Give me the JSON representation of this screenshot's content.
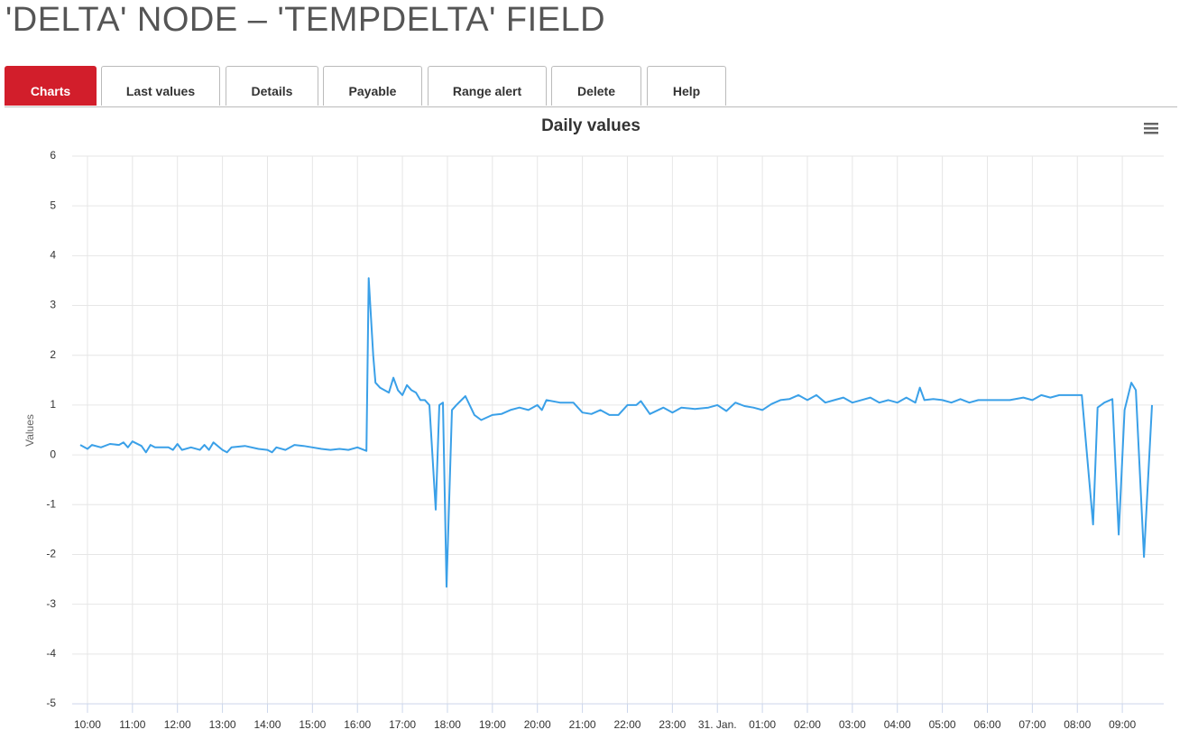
{
  "header": {
    "title": "'DELTA' NODE – 'TEMPDELTA' FIELD"
  },
  "tabs": [
    "Charts",
    "Last values",
    "Details",
    "Payable",
    "Range alert",
    "Delete",
    "Help"
  ],
  "chart_data": {
    "type": "line",
    "title": "Daily values",
    "y_label": "Values",
    "color": "#3aa0e8",
    "grid": true,
    "xlim": [
      9.66,
      33.92
    ],
    "ylim": [
      -5,
      6
    ],
    "yticks": [
      -5,
      -4,
      -3,
      -2,
      -1,
      0,
      1,
      2,
      3,
      4,
      5,
      6
    ],
    "xticks": [
      {
        "value": 10,
        "label": "10:00"
      },
      {
        "value": 11,
        "label": "11:00"
      },
      {
        "value": 12,
        "label": "12:00"
      },
      {
        "value": 13,
        "label": "13:00"
      },
      {
        "value": 14,
        "label": "14:00"
      },
      {
        "value": 15,
        "label": "15:00"
      },
      {
        "value": 16,
        "label": "16:00"
      },
      {
        "value": 17,
        "label": "17:00"
      },
      {
        "value": 18,
        "label": "18:00"
      },
      {
        "value": 19,
        "label": "19:00"
      },
      {
        "value": 20,
        "label": "20:00"
      },
      {
        "value": 21,
        "label": "21:00"
      },
      {
        "value": 22,
        "label": "22:00"
      },
      {
        "value": 23,
        "label": "23:00"
      },
      {
        "value": 24,
        "label": "31. Jan."
      },
      {
        "value": 25,
        "label": "01:00"
      },
      {
        "value": 26,
        "label": "02:00"
      },
      {
        "value": 27,
        "label": "03:00"
      },
      {
        "value": 28,
        "label": "04:00"
      },
      {
        "value": 29,
        "label": "05:00"
      },
      {
        "value": 30,
        "label": "06:00"
      },
      {
        "value": 31,
        "label": "07:00"
      },
      {
        "value": 32,
        "label": "08:00"
      },
      {
        "value": 33,
        "label": "09:00"
      }
    ],
    "x": [
      9.84,
      10.0,
      10.1,
      10.3,
      10.5,
      10.7,
      10.8,
      10.9,
      11.0,
      11.2,
      11.3,
      11.4,
      11.5,
      11.8,
      11.9,
      12.0,
      12.1,
      12.3,
      12.5,
      12.6,
      12.7,
      12.8,
      13.0,
      13.1,
      13.2,
      13.5,
      13.8,
      14.0,
      14.1,
      14.2,
      14.4,
      14.6,
      14.8,
      15.0,
      15.2,
      15.4,
      15.6,
      15.8,
      16.0,
      16.2,
      16.25,
      16.35,
      16.4,
      16.5,
      16.7,
      16.8,
      16.9,
      17.0,
      17.1,
      17.2,
      17.3,
      17.4,
      17.5,
      17.6,
      17.74,
      17.82,
      17.9,
      17.98,
      18.1,
      18.2,
      18.4,
      18.6,
      18.75,
      19.0,
      19.2,
      19.4,
      19.6,
      19.8,
      20.0,
      20.1,
      20.2,
      20.5,
      20.8,
      21.0,
      21.2,
      21.4,
      21.6,
      21.8,
      22.0,
      22.2,
      22.3,
      22.5,
      22.8,
      23.0,
      23.2,
      23.5,
      23.8,
      24.0,
      24.2,
      24.4,
      24.6,
      24.8,
      25.0,
      25.2,
      25.4,
      25.6,
      25.8,
      26.0,
      26.2,
      26.4,
      26.6,
      26.8,
      27.0,
      27.2,
      27.4,
      27.6,
      27.8,
      28.0,
      28.2,
      28.4,
      28.5,
      28.6,
      28.8,
      29.0,
      29.2,
      29.4,
      29.6,
      29.8,
      30.0,
      30.5,
      30.8,
      31.0,
      31.2,
      31.4,
      31.6,
      32.0,
      32.1,
      32.35,
      32.45,
      32.6,
      32.78,
      32.92,
      33.05,
      33.2,
      33.3,
      33.48,
      33.66
    ],
    "values": [
      0.2,
      0.12,
      0.2,
      0.15,
      0.22,
      0.2,
      0.25,
      0.15,
      0.27,
      0.18,
      0.05,
      0.2,
      0.15,
      0.15,
      0.1,
      0.22,
      0.1,
      0.15,
      0.1,
      0.2,
      0.1,
      0.25,
      0.1,
      0.05,
      0.15,
      0.18,
      0.12,
      0.1,
      0.05,
      0.15,
      0.1,
      0.2,
      0.18,
      0.15,
      0.12,
      0.1,
      0.12,
      0.1,
      0.15,
      0.08,
      3.55,
      2.0,
      1.45,
      1.35,
      1.25,
      1.55,
      1.3,
      1.2,
      1.4,
      1.3,
      1.25,
      1.1,
      1.1,
      1.0,
      -1.1,
      1.0,
      1.05,
      -2.65,
      0.9,
      1.0,
      1.18,
      0.8,
      0.7,
      0.8,
      0.82,
      0.9,
      0.95,
      0.9,
      1.0,
      0.9,
      1.1,
      1.05,
      1.05,
      0.85,
      0.82,
      0.9,
      0.8,
      0.8,
      1.0,
      1.0,
      1.08,
      0.82,
      0.95,
      0.85,
      0.95,
      0.92,
      0.95,
      1.0,
      0.88,
      1.05,
      0.98,
      0.95,
      0.9,
      1.02,
      1.1,
      1.12,
      1.2,
      1.1,
      1.2,
      1.05,
      1.1,
      1.15,
      1.05,
      1.1,
      1.15,
      1.05,
      1.1,
      1.05,
      1.15,
      1.05,
      1.35,
      1.1,
      1.12,
      1.1,
      1.05,
      1.12,
      1.05,
      1.1,
      1.1,
      1.1,
      1.15,
      1.1,
      1.2,
      1.15,
      1.2,
      1.2,
      1.2,
      -1.4,
      0.95,
      1.05,
      1.12,
      -1.6,
      0.9,
      1.45,
      1.3,
      -2.05,
      1.0
    ]
  }
}
